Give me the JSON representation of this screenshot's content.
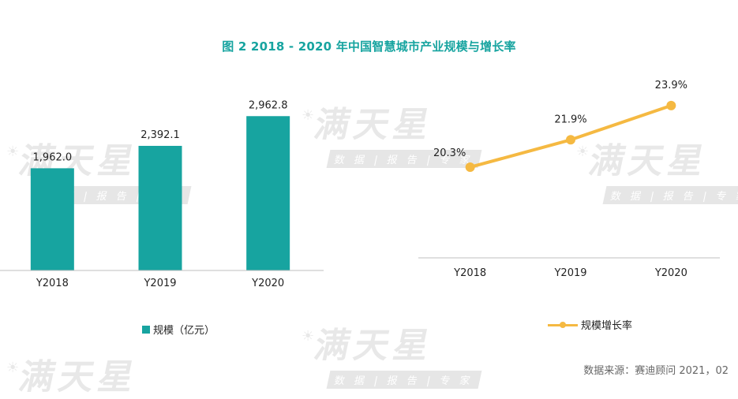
{
  "watermark": {
    "brand": "满天星",
    "tagline": "数 据 | 报 告 | 专 家"
  },
  "legend": {
    "bar_label": "规模（亿元）",
    "line_label": "规模增长率"
  },
  "source": "数据来源：赛迪顾问  2021，02",
  "chart_data": [
    {
      "type": "bar",
      "title": "图 2  2018 - 2020 年中国智慧城市产业规模与增长率",
      "series_name": "规模（亿元）",
      "categories": [
        "Y2018",
        "Y2019",
        "Y2020"
      ],
      "values": [
        1962.0,
        2392.1,
        2962.8
      ],
      "value_labels": [
        "1,962.0",
        "2,392.1",
        "2,962.8"
      ],
      "ylim": [
        0,
        3300
      ],
      "color": "#17a4a0"
    },
    {
      "type": "line",
      "series_name": "规模增长率",
      "categories": [
        "Y2018",
        "Y2019",
        "Y2020"
      ],
      "values": [
        20.3,
        21.9,
        23.9
      ],
      "value_labels": [
        "20.3%",
        "21.9%",
        "23.9%"
      ],
      "ylim": [
        15,
        25
      ],
      "color": "#f5b942"
    }
  ]
}
